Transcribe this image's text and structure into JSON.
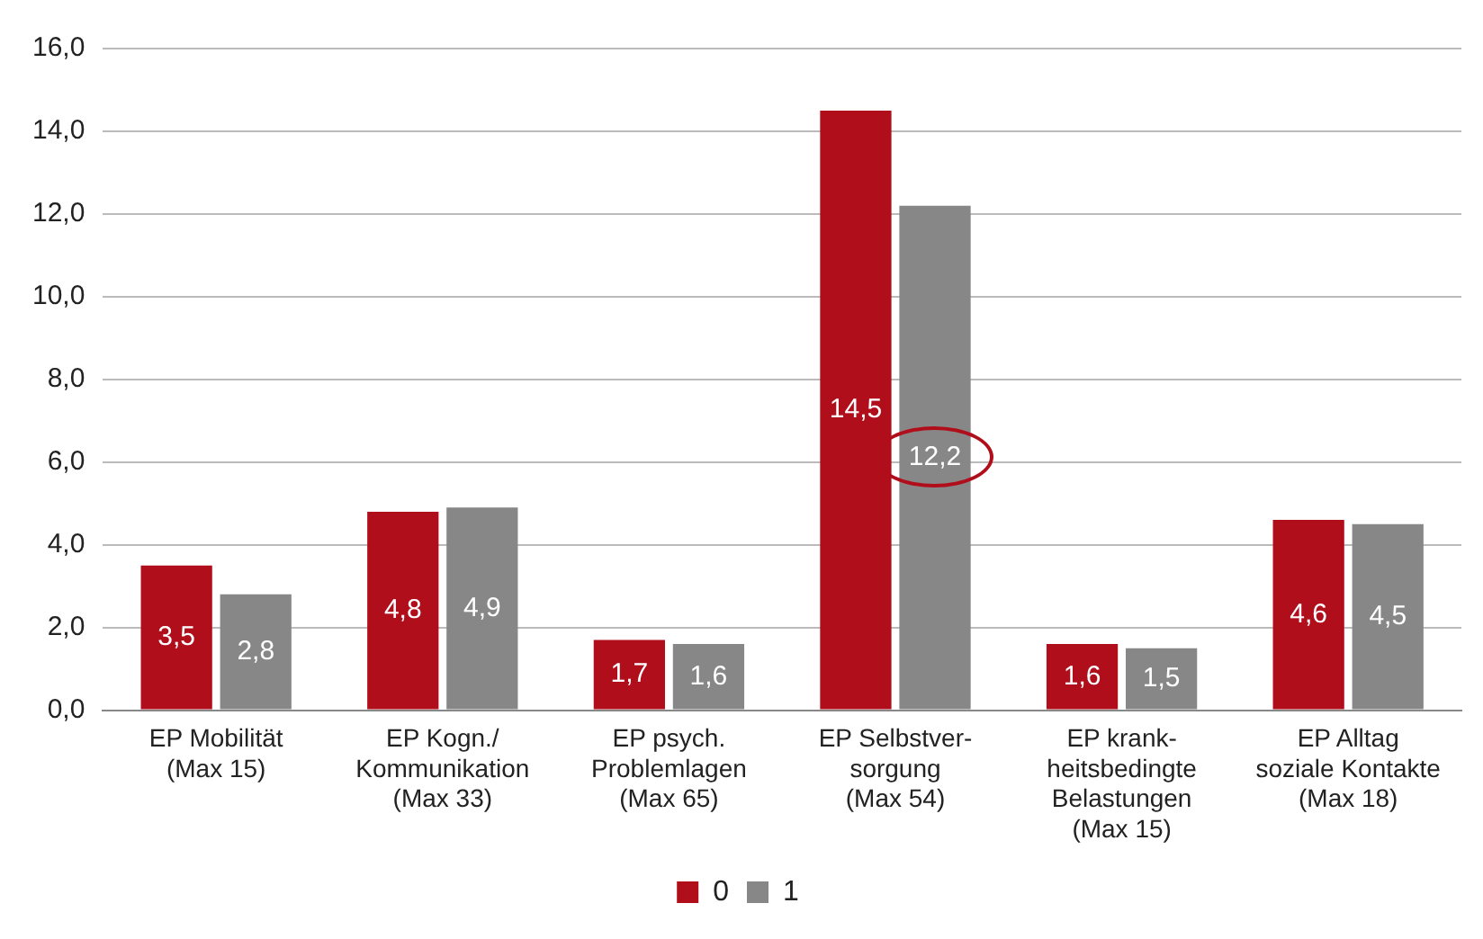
{
  "chart_data": {
    "type": "bar",
    "categories": [
      "EP Mobilität\n(Max 15)",
      "EP Kogn./\nKommunikation\n(Max 33)",
      "EP psych.\nProblemlagen\n(Max 65)",
      "EP Selbstver-\nsorgung\n(Max 54)",
      "EP krank-\nheitsbedingte\nBelastungen\n(Max 15)",
      "EP Alltag\nsoziale Kontakte\n(Max 18)"
    ],
    "series": [
      {
        "name": "0",
        "color": "#b10e1c",
        "values": [
          3.5,
          4.8,
          1.7,
          14.5,
          1.6,
          4.6
        ],
        "value_labels": [
          "3,5",
          "4,8",
          "1,7",
          "14,5",
          "1,6",
          "4,6"
        ]
      },
      {
        "name": "1",
        "color": "#878787",
        "values": [
          2.8,
          4.9,
          1.6,
          12.2,
          1.5,
          4.5
        ],
        "value_labels": [
          "2,8",
          "4,9",
          "1,6",
          "12,2",
          "1,5",
          "4,5"
        ]
      }
    ],
    "ylim": [
      0,
      16
    ],
    "yticks": [
      {
        "value": 0,
        "label": "0,0"
      },
      {
        "value": 2,
        "label": "2,0"
      },
      {
        "value": 4,
        "label": "4,0"
      },
      {
        "value": 6,
        "label": "6,0"
      },
      {
        "value": 8,
        "label": "8,0"
      },
      {
        "value": 10,
        "label": "10,0"
      },
      {
        "value": 12,
        "label": "12,0"
      },
      {
        "value": 14,
        "label": "14,0"
      },
      {
        "value": 16,
        "label": "16,0"
      }
    ],
    "grid": "y",
    "legend": "bottom"
  }
}
